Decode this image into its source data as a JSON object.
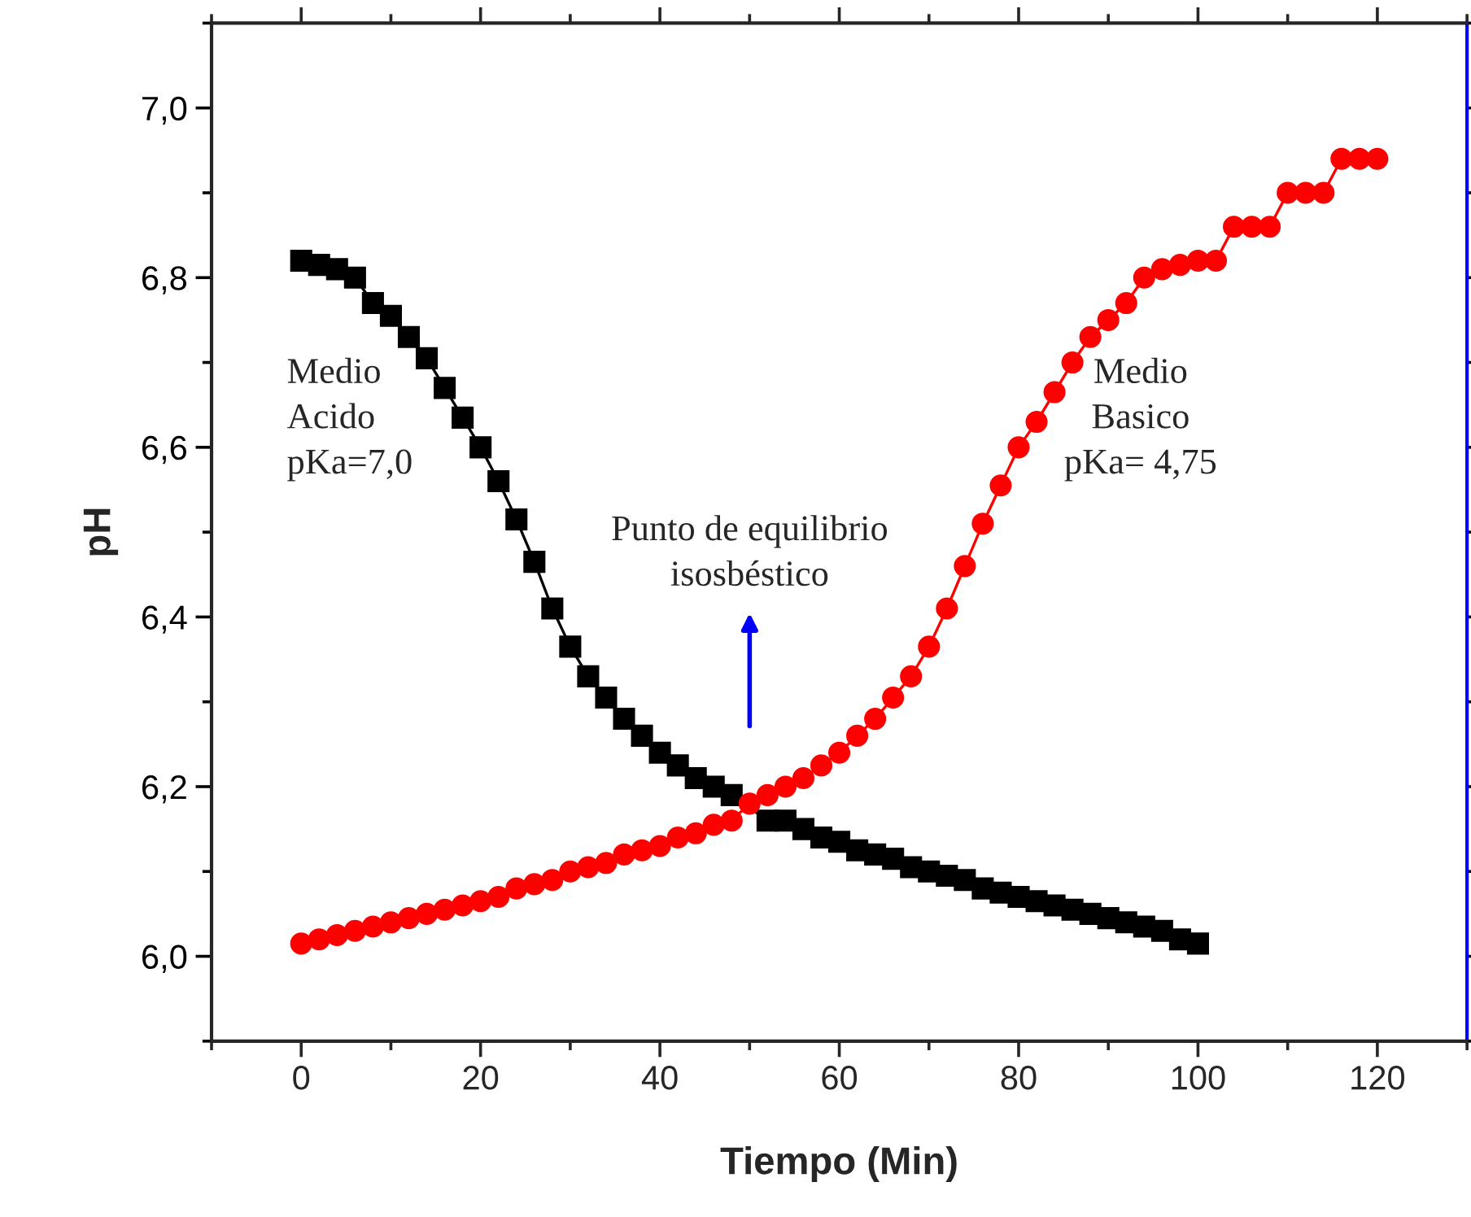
{
  "chart_data": {
    "type": "line",
    "xlabel": "Tiempo (Min)",
    "ylabel": "pH",
    "x": [
      0,
      2,
      4,
      6,
      8,
      10,
      12,
      14,
      16,
      18,
      20,
      22,
      24,
      26,
      28,
      30,
      32,
      34,
      36,
      38,
      40,
      42,
      44,
      46,
      48,
      50,
      52,
      54,
      56,
      58,
      60,
      62,
      64,
      66,
      68,
      70,
      72,
      74,
      76,
      78,
      80,
      82,
      84,
      86,
      88,
      90,
      92,
      94,
      96,
      98,
      100,
      102,
      104,
      106,
      108,
      110,
      112,
      114,
      116,
      118,
      120
    ],
    "series": [
      {
        "color": "#000000",
        "marker": "square",
        "x": [
          0,
          2,
          4,
          6,
          8,
          10,
          12,
          14,
          16,
          18,
          20,
          22,
          24,
          26,
          28,
          30,
          32,
          34,
          36,
          38,
          40,
          42,
          44,
          46,
          48,
          50,
          52,
          54,
          56,
          58,
          60,
          62,
          64,
          66,
          68,
          70,
          72,
          74,
          76,
          78,
          80,
          82,
          84,
          86,
          88,
          90,
          92,
          94,
          96,
          98,
          100
        ],
        "values": [
          6.82,
          6.815,
          6.81,
          6.8,
          6.77,
          6.755,
          6.73,
          6.705,
          6.67,
          6.635,
          6.6,
          6.56,
          6.515,
          6.465,
          6.41,
          6.365,
          6.33,
          6.305,
          6.28,
          6.26,
          6.24,
          6.225,
          6.21,
          6.2,
          6.19,
          null,
          6.16,
          6.16,
          6.15,
          6.14,
          6.135,
          6.125,
          6.12,
          6.115,
          6.105,
          6.1,
          6.095,
          6.09,
          6.08,
          6.075,
          6.07,
          6.065,
          6.06,
          6.055,
          6.05,
          6.045,
          6.04,
          6.035,
          6.03,
          6.02,
          6.015
        ]
      },
      {
        "color": "#ff0000",
        "marker": "circle",
        "values": [
          6.015,
          6.02,
          6.025,
          6.03,
          6.035,
          6.04,
          6.045,
          6.05,
          6.055,
          6.06,
          6.065,
          6.07,
          6.08,
          6.085,
          6.09,
          6.1,
          6.105,
          6.11,
          6.12,
          6.125,
          6.13,
          6.14,
          6.145,
          6.155,
          6.16,
          6.18,
          6.19,
          6.2,
          6.21,
          6.225,
          6.24,
          6.26,
          6.28,
          6.305,
          6.33,
          6.365,
          6.41,
          6.46,
          6.51,
          6.555,
          6.6,
          6.63,
          6.665,
          6.7,
          6.73,
          6.75,
          6.77,
          6.8,
          6.81,
          6.815,
          6.82,
          6.82,
          6.86,
          6.86,
          6.86,
          6.9,
          6.9,
          6.9,
          6.94,
          6.94,
          6.94
        ]
      }
    ],
    "xlim": [
      -10,
      130
    ],
    "xticks": [
      0,
      20,
      40,
      60,
      80,
      100,
      120
    ],
    "ylim": [
      5.9,
      7.1
    ],
    "yticks": [
      {
        "value": 6.0,
        "label": "6,0"
      },
      {
        "value": 6.2,
        "label": "6,2"
      },
      {
        "value": 6.4,
        "label": "6,4"
      },
      {
        "value": 6.6,
        "label": "6,6"
      },
      {
        "value": 6.8,
        "label": "6,8"
      },
      {
        "value": 7.0,
        "label": "7,0"
      }
    ],
    "line_style": "solid",
    "annotations": [
      "Medio\nAcido\npKa=7,0",
      "Medio\nBasico\npKa= 4,75",
      "Punto de equilibrio\nisosbéstico"
    ]
  }
}
